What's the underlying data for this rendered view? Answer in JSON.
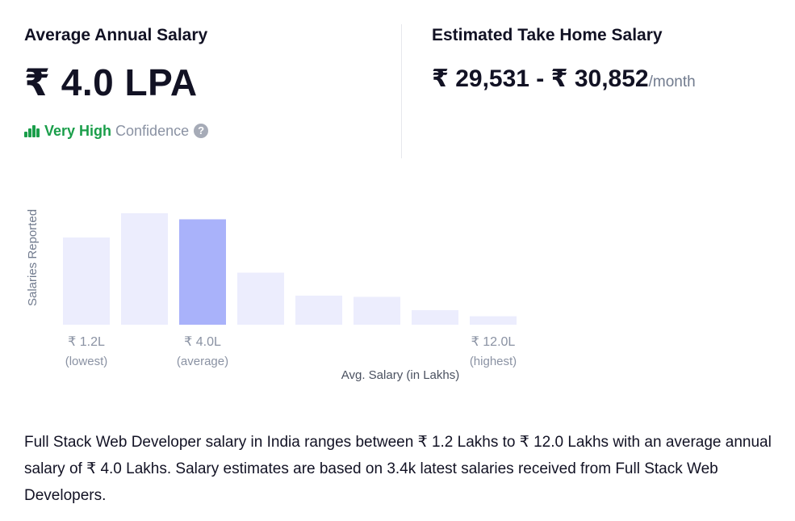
{
  "average_salary": {
    "title": "Average Annual Salary",
    "amount": "₹ 4.0 LPA",
    "confidence_level": "Very High",
    "confidence_label": "Confidence",
    "help_glyph": "?"
  },
  "take_home": {
    "title": "Estimated Take Home Salary",
    "amount": "₹ 29,531 - ₹ 30,852",
    "suffix": "/month"
  },
  "colors": {
    "bar": "#ecedfd",
    "bar_highlight": "#a9b2fa",
    "confidence": "#1a9e4a"
  },
  "chart_data": {
    "type": "bar",
    "ylabel": "Salaries Reported",
    "xlabel": "Avg. Salary (in Lakhs)",
    "values": [
      0.72,
      0.92,
      0.87,
      0.43,
      0.24,
      0.23,
      0.12,
      0.07
    ],
    "highlight_index": 2,
    "markers": [
      {
        "index": 0,
        "label": "₹ 1.2L",
        "sublabel": "(lowest)"
      },
      {
        "index": 2,
        "label": "₹ 4.0L",
        "sublabel": "(average)"
      },
      {
        "index": 7,
        "label": "₹ 12.0L",
        "sublabel": "(highest)"
      }
    ]
  },
  "description": "Full Stack Web Developer salary in India ranges between ₹ 1.2 Lakhs to ₹ 12.0 Lakhs with an average annual salary of ₹ 4.0 Lakhs. Salary estimates are based on 3.4k latest salaries received from Full Stack Web Developers."
}
